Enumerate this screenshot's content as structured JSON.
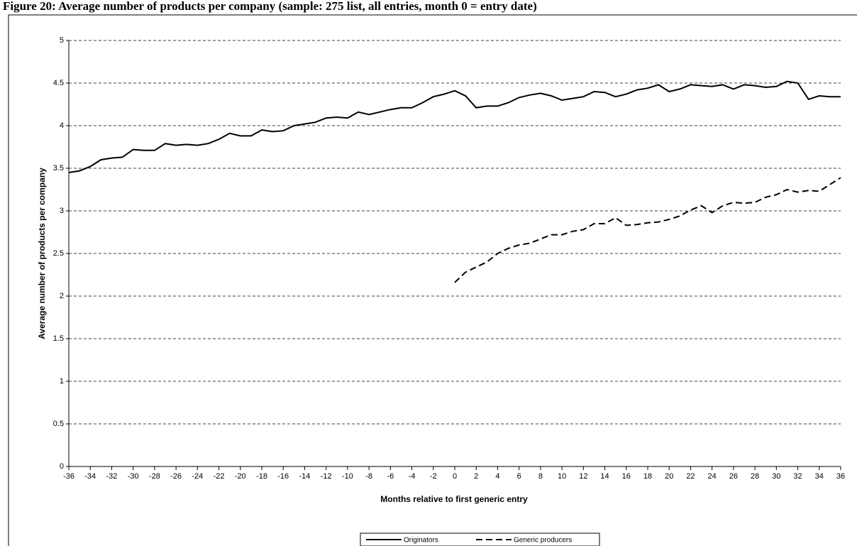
{
  "chart_data": {
    "type": "line",
    "title": "Figure 20: Average number of products per company (sample: 275 list, all entries, month 0 = entry date)",
    "x_label": "Months relative to first generic entry",
    "y_label": "Average number of products per company",
    "x": [
      -36,
      -35,
      -34,
      -33,
      -32,
      -31,
      -30,
      -29,
      -28,
      -27,
      -26,
      -25,
      -24,
      -23,
      -22,
      -21,
      -20,
      -19,
      -18,
      -17,
      -16,
      -15,
      -14,
      -13,
      -12,
      -11,
      -10,
      -9,
      -8,
      -7,
      -6,
      -5,
      -4,
      -3,
      -2,
      -1,
      0,
      1,
      2,
      3,
      4,
      5,
      6,
      7,
      8,
      9,
      10,
      11,
      12,
      13,
      14,
      15,
      16,
      17,
      18,
      19,
      20,
      21,
      22,
      23,
      24,
      25,
      26,
      27,
      28,
      29,
      30,
      31,
      32,
      33,
      34,
      35,
      36
    ],
    "series": [
      {
        "name": "Originators",
        "color": "#000000",
        "dash": "solid",
        "values": [
          3.45,
          3.47,
          3.52,
          3.6,
          3.62,
          3.63,
          3.72,
          3.71,
          3.71,
          3.79,
          3.77,
          3.78,
          3.77,
          3.79,
          3.84,
          3.91,
          3.88,
          3.88,
          3.95,
          3.93,
          3.94,
          4.0,
          4.02,
          4.04,
          4.09,
          4.1,
          4.09,
          4.16,
          4.13,
          4.16,
          4.19,
          4.21,
          4.21,
          4.27,
          4.34,
          4.37,
          4.41,
          4.35,
          4.21,
          4.23,
          4.23,
          4.27,
          4.33,
          4.36,
          4.38,
          4.35,
          4.3,
          4.32,
          4.34,
          4.4,
          4.39,
          4.34,
          4.37,
          4.42,
          4.44,
          4.48,
          4.4,
          4.43,
          4.48,
          4.47,
          4.46,
          4.48,
          4.43,
          4.48,
          4.47,
          4.45,
          4.46,
          4.52,
          4.5,
          4.31,
          4.35,
          4.34,
          4.34
        ]
      },
      {
        "name": "Generic producers",
        "color": "#000000",
        "dash": "dashed",
        "values": [
          null,
          null,
          null,
          null,
          null,
          null,
          null,
          null,
          null,
          null,
          null,
          null,
          null,
          null,
          null,
          null,
          null,
          null,
          null,
          null,
          null,
          null,
          null,
          null,
          null,
          null,
          null,
          null,
          null,
          null,
          null,
          null,
          null,
          null,
          null,
          null,
          2.16,
          2.28,
          2.34,
          2.4,
          2.5,
          2.56,
          2.6,
          2.62,
          2.67,
          2.72,
          2.72,
          2.76,
          2.78,
          2.85,
          2.85,
          2.92,
          2.83,
          2.84,
          2.86,
          2.87,
          2.9,
          2.94,
          3.01,
          3.06,
          2.98,
          3.06,
          3.1,
          3.09,
          3.1,
          3.16,
          3.19,
          3.25,
          3.22,
          3.24,
          3.23,
          3.31,
          3.39
        ]
      }
    ],
    "xlim": [
      -36,
      36
    ],
    "xticks": [
      -36,
      -34,
      -32,
      -30,
      -28,
      -26,
      -24,
      -22,
      -20,
      -18,
      -16,
      -14,
      -12,
      -10,
      -8,
      -6,
      -4,
      -2,
      0,
      2,
      4,
      6,
      8,
      10,
      12,
      14,
      16,
      18,
      20,
      22,
      24,
      26,
      28,
      30,
      32,
      34,
      36
    ],
    "ylim": [
      0,
      5
    ],
    "yticks": [
      0,
      0.5,
      1,
      1.5,
      2,
      2.5,
      3,
      3.5,
      4,
      4.5,
      5
    ],
    "grid": true,
    "legend": "bottom"
  }
}
